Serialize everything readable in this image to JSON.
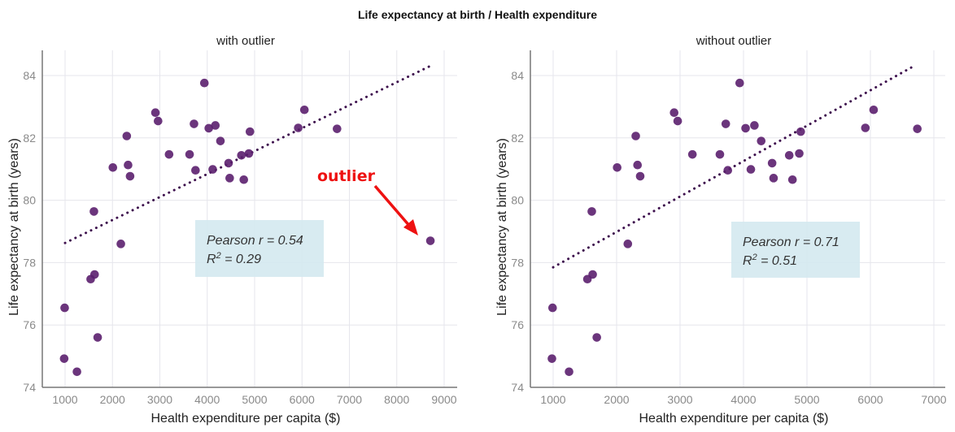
{
  "suptitle": "Life expectancy at birth / Health expenditure",
  "chart_data": [
    {
      "type": "scatter",
      "title": "with outlier",
      "xlabel": "Health expenditure per capita ($)",
      "ylabel": "Life expectancy at birth (years)",
      "xlim": [
        600,
        9100
      ],
      "ylim": [
        74,
        84.8
      ],
      "xticks": [
        1000,
        2000,
        3000,
        4000,
        5000,
        6000,
        7000,
        8000,
        9000
      ],
      "yticks": [
        74,
        76,
        78,
        80,
        82,
        84
      ],
      "grid": true,
      "point_color": "#5b1f6e",
      "trend_color": "#3d0f4d",
      "trendline": {
        "x": [
          1000,
          8700
        ],
        "y": [
          78.63,
          84.3
        ]
      },
      "annotation": {
        "line1": "Pearson r = 0.54",
        "line2_prefix": "R",
        "line2_sup": "2",
        "line2_suffix": " = 0.29",
        "bg": "#d4e9f0"
      },
      "outlier_label": {
        "text": "outlier",
        "color": "#ee1111"
      },
      "points": {
        "x": [
          3940,
          2907,
          2963,
          2302,
          3721,
          4033,
          4172,
          4279,
          5921,
          6051,
          6740,
          4902,
          3195,
          3628,
          4721,
          4879,
          2009,
          2330,
          2372,
          3753,
          4116,
          4451,
          4474,
          4772,
          1609,
          2177,
          1623,
          1540,
          991,
          1688,
          981,
          1251,
          8710
        ],
        "y": [
          83.76,
          82.81,
          82.54,
          82.06,
          82.45,
          82.31,
          82.4,
          81.9,
          82.32,
          82.9,
          82.29,
          82.2,
          81.47,
          81.47,
          81.44,
          81.5,
          81.05,
          81.13,
          80.77,
          80.96,
          80.99,
          81.19,
          80.71,
          80.66,
          79.64,
          78.6,
          77.62,
          77.47,
          76.55,
          75.6,
          74.92,
          74.5,
          78.7
        ]
      }
    },
    {
      "type": "scatter",
      "title": "without outlier",
      "xlabel": "Health expenditure per capita ($)",
      "ylabel": "Life expectancy at birth (years)",
      "xlim": [
        660,
        7150
      ],
      "ylim": [
        74,
        84.8
      ],
      "xticks": [
        1000,
        2000,
        3000,
        4000,
        5000,
        6000,
        7000
      ],
      "yticks": [
        74,
        76,
        78,
        80,
        82,
        84
      ],
      "grid": true,
      "point_color": "#5b1f6e",
      "trend_color": "#3d0f4d",
      "trendline": {
        "x": [
          1000,
          6700
        ],
        "y": [
          77.85,
          84.32
        ]
      },
      "annotation": {
        "line1": "Pearson r = 0.71",
        "line2_prefix": "R",
        "line2_sup": "2",
        "line2_suffix": " = 0.51",
        "bg": "#d4e9f0"
      },
      "points": {
        "x": [
          3940,
          2907,
          2963,
          2302,
          3721,
          4033,
          4172,
          4279,
          5921,
          6051,
          6740,
          4902,
          3195,
          3628,
          4721,
          4879,
          2009,
          2330,
          2372,
          3753,
          4116,
          4451,
          4474,
          4772,
          1609,
          2177,
          1623,
          1540,
          991,
          1688,
          981,
          1251
        ],
        "y": [
          83.76,
          82.81,
          82.54,
          82.06,
          82.45,
          82.31,
          82.4,
          81.9,
          82.32,
          82.9,
          82.29,
          82.2,
          81.47,
          81.47,
          81.44,
          81.5,
          81.05,
          81.13,
          80.77,
          80.96,
          80.99,
          81.19,
          80.71,
          80.66,
          79.64,
          78.6,
          77.62,
          77.47,
          76.55,
          75.6,
          74.92,
          74.5
        ]
      }
    }
  ]
}
